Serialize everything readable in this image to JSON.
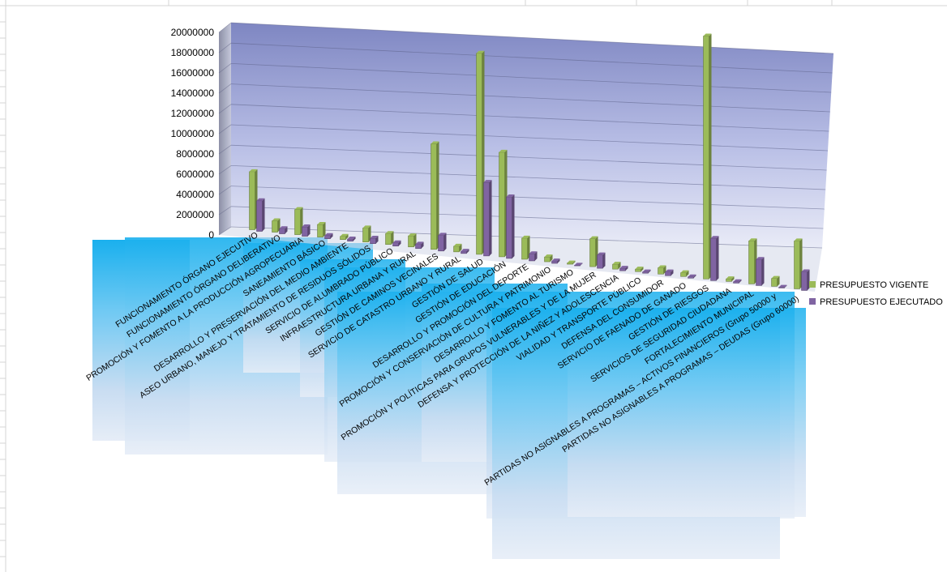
{
  "chart_data": {
    "type": "bar",
    "categories": [
      "FUNCIONAMIENTO ÓRGANO EJECUTIVO",
      "FUNCIONAMIENTO ÓRGANO DELIBERATIVO",
      "PROMOCIÓN Y FOMENTO A LA PRODUCCIÓN AGROPECUARIA",
      "SANEAMIENTO BÁSICO",
      "DESARROLLO Y PRESERVACIÓN DEL MEDIO AMBIENTE",
      "ASEO URBANO, MANEJO Y TRATAMIENTO DE RESIDUOS SÓLIDOS",
      "SERVICIO DE ALUMBRADO PÚBLICO",
      "INFRAESTRUCTURA URBANA Y RURAL",
      "GESTIÓN DE CAMINOS VECINALES",
      "SERVICIO DE CATASTRO URBANO Y RURAL",
      "GESTIÓN DE SALUD",
      "GESTIÓN DE EDUCACIÓN",
      "DESARROLLO Y PROMOCIÓN DEL DEPORTE",
      "PROMOCIÓN Y CONSERVACIÓN DE CULTURA Y PATRIMONIO",
      "DESARROLLO Y FOMENTO AL TURISMO",
      "PROMOCIÓN Y POLÍTICAS PARA GRUPOS VULNERABLES Y DE LA MUJER",
      "DEFENSA Y PROTECCIÓN DE LA NIÑEZ Y ADOLESCENCIA",
      "VIALIDAD Y TRANSPORTE PÚBLICO",
      "DEFENSA DEL CONSUMIDOR",
      "SERVICIO DE FAENADO DE GANADO",
      "GESTIÓN DE RIESGOS",
      "SERVICIOS DE SEGURIDAD CIUDADANA",
      "FORTALECIMIENTO MUNICIPAL",
      "PARTIDAS NO ASIGNABLES  A PROGRAMAS  – ACTIVOS FINANCIEROS (Grupo 50000 y",
      "PARTIDAS NO ASIGNABLES  A PROGRAMAS  – DEUDAS (Grupo 60000)"
    ],
    "series": [
      {
        "name": "PRESUPUESTO VIGENTE",
        "color": "#9BBB59",
        "values": [
          5700000,
          1100000,
          2400000,
          1200000,
          300000,
          1300000,
          1000000,
          1000000,
          9400000,
          500000,
          17500000,
          9000000,
          1800000,
          400000,
          100000,
          2300000,
          400000,
          200000,
          500000,
          300000,
          19000000,
          200000,
          3300000,
          600000,
          3600000
        ]
      },
      {
        "name": "PRESUPUESTO EJECUTADO",
        "color": "#8064A2",
        "values": [
          3000000,
          500000,
          900000,
          300000,
          200000,
          500000,
          300000,
          400000,
          1400000,
          200000,
          6400000,
          5300000,
          600000,
          200000,
          50000,
          1100000,
          200000,
          100000,
          300000,
          100000,
          3300000,
          100000,
          2000000,
          50000,
          1400000
        ]
      }
    ],
    "y_ticks": [
      "20000000",
      "18000000",
      "16000000",
      "14000000",
      "12000000",
      "10000000",
      "8000000",
      "6000000",
      "4000000",
      "2000000",
      "0"
    ],
    "ylim": [
      0,
      20000000
    ],
    "grid": true,
    "legend": "right",
    "title": "",
    "xlabel": "",
    "ylabel": ""
  }
}
